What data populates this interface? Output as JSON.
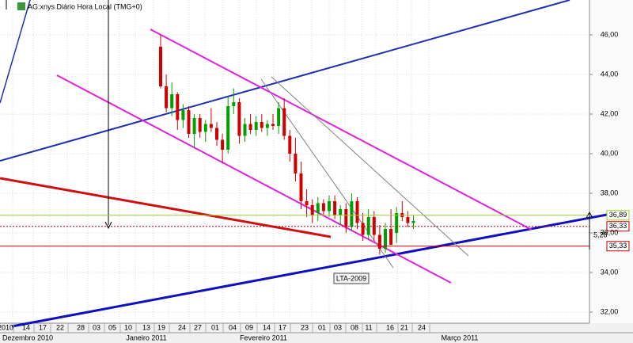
{
  "chart_data": {
    "type": "candlestick",
    "title": "AG:xnys Diário Hora Local (TMG+0)",
    "ylim": [
      31.44,
      47.76
    ],
    "yticks": [
      {
        "value": 32,
        "label": "32,00"
      },
      {
        "value": 34,
        "label": "34,00"
      },
      {
        "value": 36,
        "label": "36,00"
      },
      {
        "value": 38,
        "label": "38,00"
      },
      {
        "value": 40,
        "label": "40,00"
      },
      {
        "value": 42,
        "label": "42,00"
      },
      {
        "value": 44,
        "label": "44,00"
      },
      {
        "value": 46,
        "label": "46,00"
      }
    ],
    "grid": true,
    "up_color": "#00a000",
    "down_color": "#d00000",
    "x_tick_labels": [
      "2010",
      "14",
      "17",
      "22",
      "28",
      "03",
      "05",
      "10",
      "13",
      "19",
      "24",
      "27",
      "01",
      "04",
      "09",
      "14",
      "17",
      "23",
      "01",
      "03",
      "08",
      "11",
      "16",
      "21",
      "24"
    ],
    "month_labels": [
      "Dezembro 2010",
      "Janeiro 2011",
      "Fevereiro 2011",
      "Março 2011"
    ],
    "open": [
      45.4,
      43.4,
      42.3,
      43.0,
      41.7,
      42.2,
      41.0,
      41.8,
      41.1,
      41.5,
      41.3,
      40.7,
      40.2,
      42.4,
      42.6,
      40.9,
      41.5,
      41.2,
      41.6,
      41.3,
      41.5,
      41.4,
      42.3,
      40.9,
      40.0,
      39.0,
      37.6,
      37.4,
      37.0,
      37.5,
      37.1,
      37.6,
      36.9,
      37.2,
      36.3,
      37.6,
      36.5,
      35.9,
      36.8,
      35.9,
      35.2,
      36.2,
      36.0,
      37.0,
      36.8,
      36.5
    ],
    "high": [
      46.0,
      44.0,
      43.6,
      43.1,
      42.5,
      42.4,
      42.0,
      42.0,
      41.7,
      42.3,
      41.6,
      41.0,
      42.9,
      43.3,
      42.8,
      41.8,
      42.0,
      41.9,
      42.0,
      41.7,
      42.0,
      42.6,
      42.8,
      41.2,
      40.8,
      39.6,
      38.2,
      37.7,
      37.8,
      37.7,
      37.9,
      37.9,
      37.4,
      37.5,
      38.0,
      37.8,
      37.0,
      37.2,
      37.1,
      36.4,
      36.5,
      37.2,
      37.3,
      37.6,
      37.1,
      36.9
    ],
    "low": [
      43.3,
      42.1,
      41.9,
      41.2,
      41.3,
      40.8,
      40.3,
      40.8,
      40.6,
      41.1,
      40.4,
      39.5,
      40.0,
      42.0,
      40.5,
      40.6,
      41.0,
      40.9,
      41.1,
      40.9,
      41.2,
      41.0,
      40.7,
      39.6,
      38.6,
      37.2,
      36.8,
      36.5,
      36.6,
      36.9,
      36.8,
      36.7,
      36.4,
      36.0,
      36.1,
      36.2,
      35.6,
      35.7,
      35.6,
      34.9,
      35.0,
      35.4,
      35.5,
      36.6,
      36.3,
      36.2
    ],
    "close": [
      43.4,
      42.3,
      43.0,
      41.7,
      42.2,
      41.0,
      41.8,
      41.1,
      41.5,
      41.3,
      40.7,
      40.2,
      42.4,
      42.6,
      40.9,
      41.5,
      41.2,
      41.6,
      41.3,
      41.5,
      41.4,
      42.3,
      40.9,
      40.0,
      39.0,
      37.6,
      37.4,
      36.9,
      37.5,
      37.1,
      37.6,
      36.9,
      37.2,
      36.3,
      37.6,
      36.5,
      35.9,
      36.8,
      35.9,
      35.2,
      36.2,
      35.4,
      37.0,
      36.8,
      36.5,
      36.6
    ],
    "levels": [
      {
        "value": 36.89,
        "label": "36,89",
        "color": "#9acd32",
        "style": "solid"
      },
      {
        "value": 36.33,
        "label": "36,33",
        "color": "#c00000",
        "style": "dotted"
      },
      {
        "value": 35.33,
        "label": "35,33",
        "color": "#c00000",
        "style": "solid"
      }
    ],
    "annotations": [
      "5,28",
      "LTA-2009"
    ]
  }
}
